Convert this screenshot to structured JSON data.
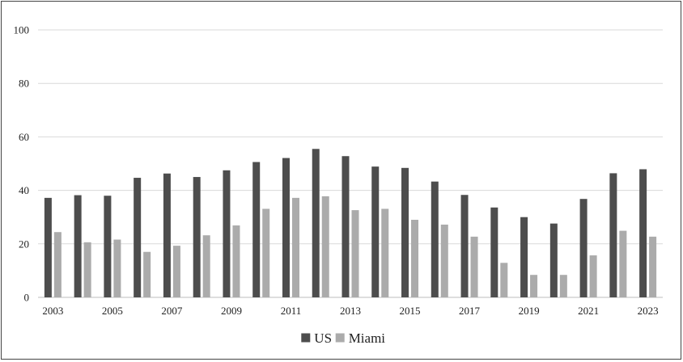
{
  "chart_data": {
    "type": "bar",
    "categories": [
      "2003",
      "2004",
      "2005",
      "2006",
      "2007",
      "2008",
      "2009",
      "2010",
      "2011",
      "2012",
      "2013",
      "2014",
      "2015",
      "2016",
      "2017",
      "2018",
      "2019",
      "2020",
      "2021",
      "2022",
      "2023"
    ],
    "x_tick_labels": [
      "2003",
      "2005",
      "2007",
      "2009",
      "2011",
      "2013",
      "2015",
      "2017",
      "2019",
      "2021",
      "2023"
    ],
    "series": [
      {
        "name": "US",
        "color": "#4d4d4d",
        "values": [
          37.2,
          38.2,
          38.0,
          44.7,
          46.3,
          45.0,
          47.5,
          50.6,
          52.1,
          55.5,
          52.8,
          48.9,
          48.4,
          43.3,
          38.3,
          33.6,
          30.0,
          27.6,
          36.8,
          46.4,
          47.9
        ]
      },
      {
        "name": "Miami",
        "color": "#ababab",
        "values": [
          24.4,
          20.6,
          21.6,
          17.0,
          19.3,
          23.2,
          26.9,
          33.1,
          37.2,
          37.8,
          32.6,
          33.1,
          29.0,
          27.2,
          22.7,
          12.9,
          8.4,
          8.4,
          15.7,
          24.9,
          22.7
        ]
      }
    ],
    "y_ticks": [
      0,
      20,
      40,
      60,
      80,
      100
    ],
    "ylim": [
      0,
      100
    ],
    "grid": true,
    "legend_position": "bottom-center",
    "title": "",
    "xlabel": "",
    "ylabel": ""
  }
}
